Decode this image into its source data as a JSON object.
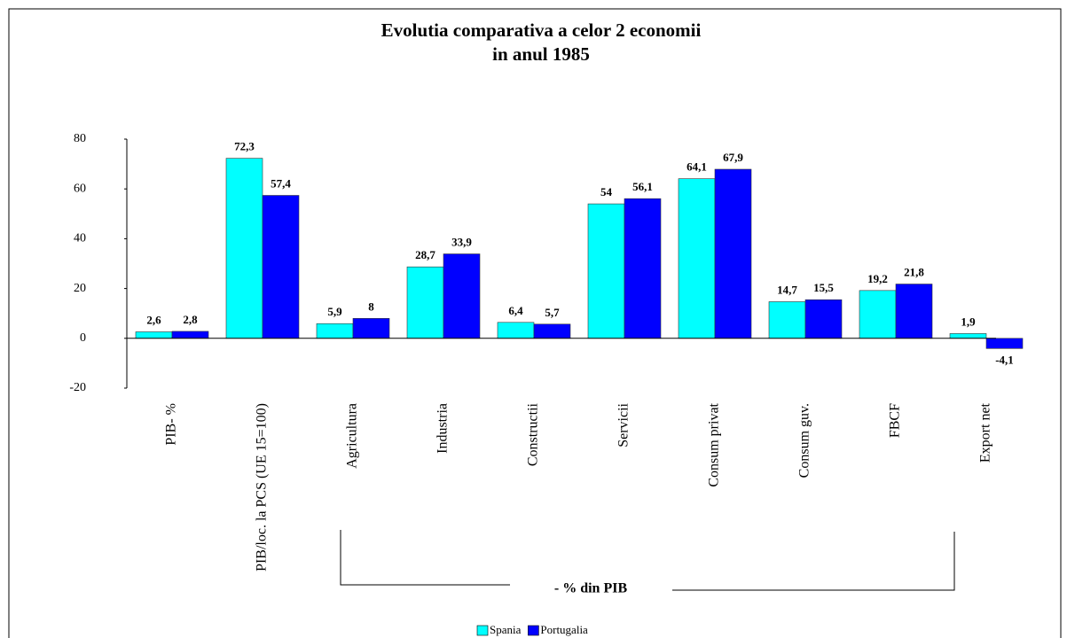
{
  "chart_data": {
    "type": "bar",
    "title": "Evolutia comparativa a celor 2 economii",
    "subtitle": "in anul 1985",
    "categories": [
      "PIB- %",
      "PIB/loc. la PCS (UE 15=100)",
      "Agricultura",
      "Industria",
      "Constructii",
      "Servicii",
      "Consum privat",
      "Consum guv.",
      "FBCF",
      "Export net"
    ],
    "series": [
      {
        "name": "Spania",
        "color": "#00ffff",
        "values": [
          2.6,
          72.3,
          5.9,
          28.7,
          6.4,
          54,
          64.1,
          14.7,
          19.2,
          1.9
        ],
        "value_labels": [
          "2,6",
          "72,3",
          "5,9",
          "28,7",
          "6,4",
          "54",
          "64,1",
          "14,7",
          "19,2",
          "1,9"
        ]
      },
      {
        "name": "Portugalia",
        "color": "#0000ff",
        "values": [
          2.8,
          57.4,
          8,
          33.9,
          5.7,
          56.1,
          67.9,
          15.5,
          21.8,
          -4.1
        ],
        "value_labels": [
          "2,8",
          "57,4",
          "8",
          "33,9",
          "5,7",
          "56,1",
          "67,9",
          "15,5",
          "21,8",
          "-4,1"
        ]
      }
    ],
    "annotation": "- % din PIB",
    "ylim": [
      -20,
      80
    ],
    "yticks": [
      -20,
      0,
      20,
      40,
      60,
      80
    ],
    "grid": false,
    "legend": "bottom"
  }
}
